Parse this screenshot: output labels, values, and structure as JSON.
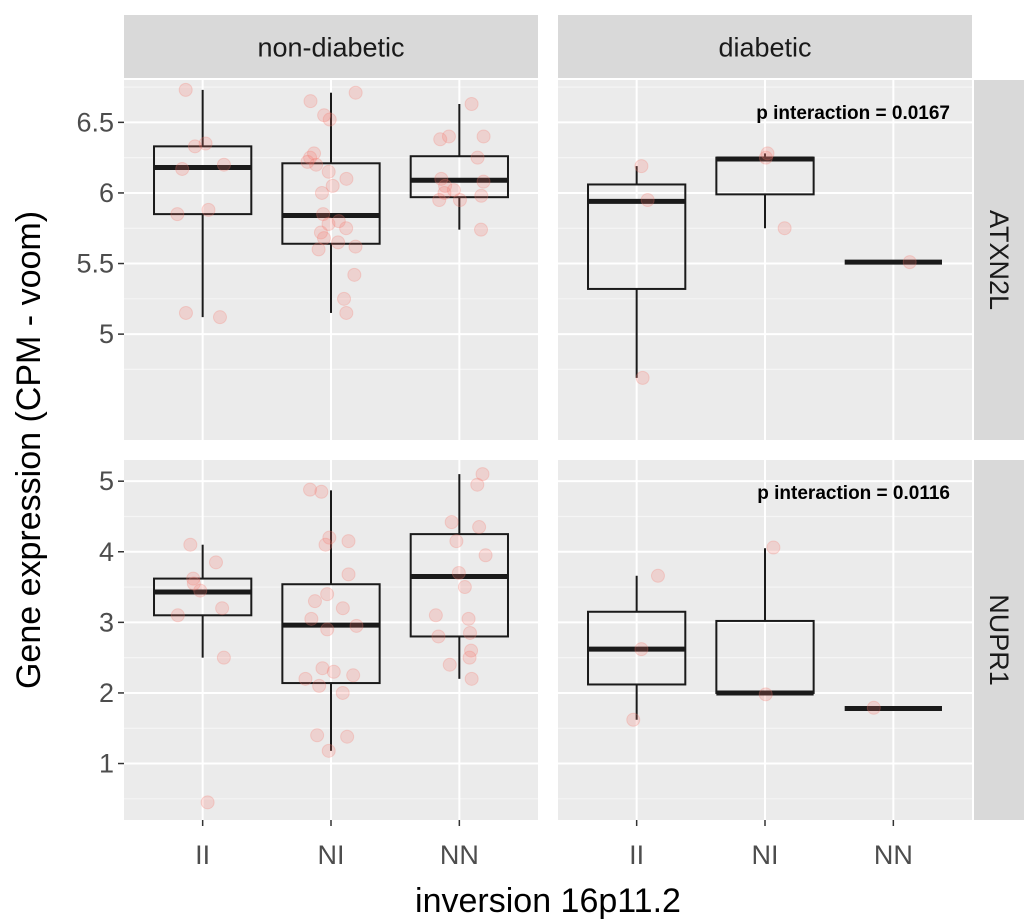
{
  "chart_data": {
    "type": "boxplot",
    "xlabel": "inversion 16p11.2",
    "ylabel": "Gene expression (CPM - voom)",
    "categories": [
      "II",
      "NI",
      "NN"
    ],
    "columns": [
      "non-diabetic",
      "diabetic"
    ],
    "rows": [
      {
        "gene": "ATXN2L",
        "ylim": [
          4.25,
          6.8
        ],
        "yticks": [
          5.0,
          5.5,
          6.0,
          6.5
        ],
        "annotation": "p interaction = 0.0167",
        "panels": [
          {
            "column": "non-diabetic",
            "boxes": [
              {
                "category": "II",
                "q1": 5.85,
                "median": 6.18,
                "q3": 6.33,
                "whisker_low": 5.12,
                "whisker_high": 6.73,
                "points": [
                  6.73,
                  6.35,
                  6.33,
                  6.2,
                  6.17,
                  5.88,
                  5.85,
                  5.15,
                  5.12
                ]
              },
              {
                "category": "NI",
                "q1": 5.64,
                "median": 5.84,
                "q3": 6.21,
                "whisker_low": 5.15,
                "whisker_high": 6.71,
                "points": [
                  6.71,
                  6.65,
                  6.55,
                  6.52,
                  6.28,
                  6.25,
                  6.22,
                  6.2,
                  6.15,
                  6.1,
                  6.05,
                  6.0,
                  5.85,
                  5.8,
                  5.78,
                  5.75,
                  5.72,
                  5.68,
                  5.65,
                  5.62,
                  5.6,
                  5.42,
                  5.25,
                  5.15
                ]
              },
              {
                "category": "NN",
                "q1": 5.97,
                "median": 6.09,
                "q3": 6.26,
                "whisker_low": 5.74,
                "whisker_high": 6.63,
                "points": [
                  6.63,
                  6.4,
                  6.4,
                  6.38,
                  6.25,
                  6.1,
                  6.08,
                  6.05,
                  6.02,
                  6.0,
                  5.98,
                  5.95,
                  5.95,
                  5.74
                ]
              }
            ]
          },
          {
            "column": "diabetic",
            "boxes": [
              {
                "category": "II",
                "q1": 5.32,
                "median": 5.94,
                "q3": 6.06,
                "whisker_low": 4.69,
                "whisker_high": 6.19,
                "points": [
                  6.19,
                  5.95,
                  4.69
                ]
              },
              {
                "category": "NI",
                "q1": 5.99,
                "median": 6.24,
                "q3": 6.25,
                "whisker_low": 5.75,
                "whisker_high": 6.28,
                "points": [
                  6.28,
                  6.25,
                  5.75
                ]
              },
              {
                "category": "NN",
                "q1": 5.51,
                "median": 5.51,
                "q3": 5.51,
                "whisker_low": 5.51,
                "whisker_high": 5.51,
                "points": [
                  5.51
                ]
              }
            ]
          }
        ]
      },
      {
        "gene": "NUPR1",
        "ylim": [
          0.2,
          5.3
        ],
        "yticks": [
          1,
          2,
          3,
          4,
          5
        ],
        "annotation": "p interaction = 0.0116",
        "panels": [
          {
            "column": "non-diabetic",
            "boxes": [
              {
                "category": "II",
                "q1": 3.1,
                "median": 3.43,
                "q3": 3.62,
                "whisker_low": 2.5,
                "whisker_high": 4.1,
                "points": [
                  4.1,
                  3.85,
                  3.62,
                  3.55,
                  3.45,
                  3.2,
                  3.1,
                  2.5,
                  0.45
                ]
              },
              {
                "category": "NI",
                "q1": 2.14,
                "median": 2.96,
                "q3": 3.54,
                "whisker_low": 1.18,
                "whisker_high": 4.87,
                "points": [
                  4.88,
                  4.85,
                  4.2,
                  4.15,
                  4.1,
                  3.68,
                  3.4,
                  3.3,
                  3.2,
                  3.05,
                  2.95,
                  2.9,
                  2.35,
                  2.3,
                  2.25,
                  2.2,
                  2.1,
                  2.0,
                  1.4,
                  1.38,
                  1.18
                ]
              },
              {
                "category": "NN",
                "q1": 2.8,
                "median": 3.65,
                "q3": 4.25,
                "whisker_low": 2.2,
                "whisker_high": 5.1,
                "points": [
                  5.1,
                  4.95,
                  4.42,
                  4.35,
                  4.15,
                  3.95,
                  3.7,
                  3.5,
                  3.1,
                  3.05,
                  2.85,
                  2.8,
                  2.6,
                  2.5,
                  2.4,
                  2.2
                ]
              }
            ]
          },
          {
            "column": "diabetic",
            "boxes": [
              {
                "category": "II",
                "q1": 2.12,
                "median": 2.62,
                "q3": 3.15,
                "whisker_low": 1.62,
                "whisker_high": 3.66,
                "points": [
                  3.66,
                  2.62,
                  1.62
                ]
              },
              {
                "category": "NI",
                "q1": 2.0,
                "median": 2.0,
                "q3": 3.02,
                "whisker_low": 2.0,
                "whisker_high": 4.05,
                "points": [
                  4.06,
                  1.98
                ]
              },
              {
                "category": "NN",
                "q1": 1.78,
                "median": 1.78,
                "q3": 1.78,
                "whisker_low": 1.78,
                "whisker_high": 1.78,
                "points": [
                  1.79
                ]
              }
            ]
          }
        ]
      }
    ],
    "colors": {
      "panel_background": "#ebebeb",
      "strip_background": "#d9d9d9",
      "grid_major": "#ffffff",
      "grid_minor": "#f5f5f5",
      "box_line": "#1a1a1a",
      "point_fill": "#f8766d"
    }
  }
}
